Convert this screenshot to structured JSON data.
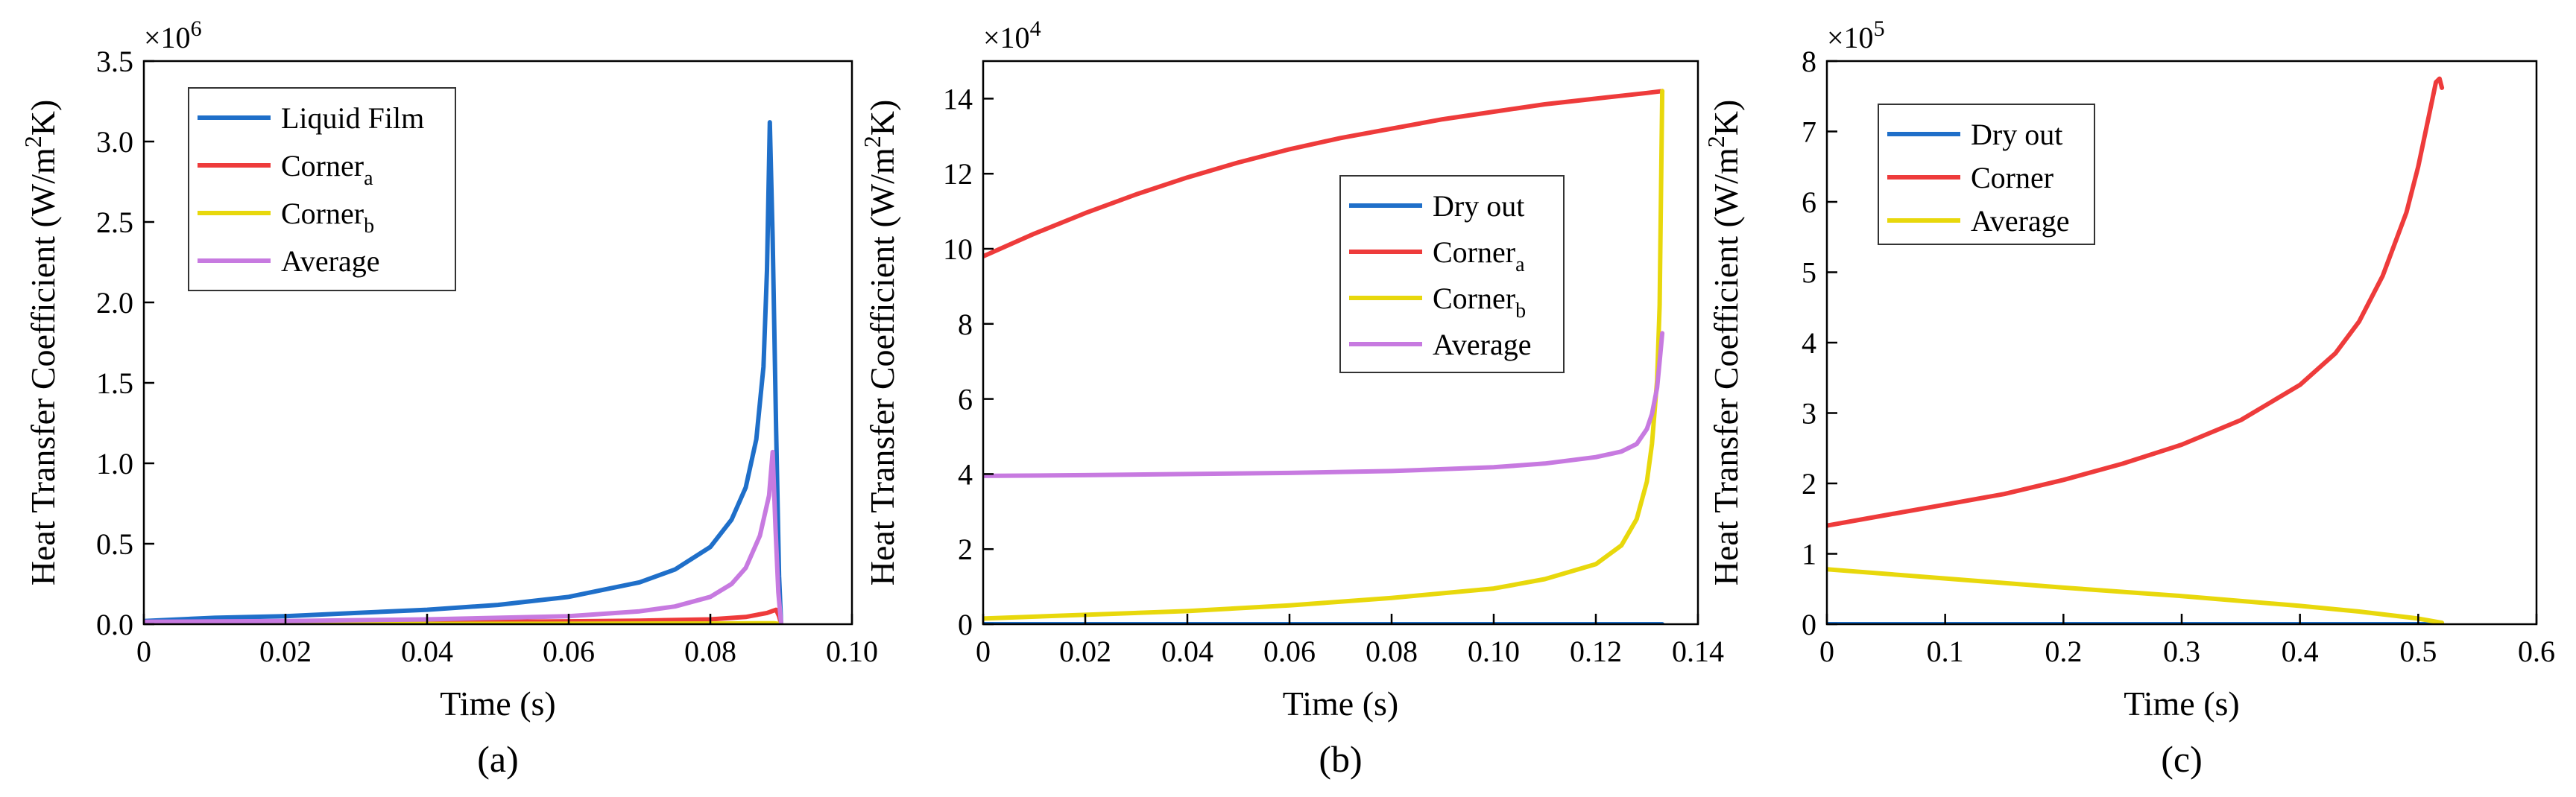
{
  "chart_data": [
    {
      "type": "line",
      "panel_label": "(a)",
      "xlabel": "Time (s)",
      "ylabel": {
        "main": "Heat Transfer Coefficient (W/m",
        "sup": "2",
        "end": "K)"
      },
      "y_multiplier": {
        "base": "×10",
        "exp": "6"
      },
      "xlim": [
        0,
        0.1
      ],
      "ylim": [
        0,
        3.5
      ],
      "xticks": [
        0,
        0.02,
        0.04,
        0.06,
        0.08,
        0.1
      ],
      "xtick_labels": [
        "0",
        "0.02",
        "0.04",
        "0.06",
        "0.08",
        "0.10"
      ],
      "yticks": [
        0,
        0.5,
        1.0,
        1.5,
        2.0,
        2.5,
        3.0,
        3.5
      ],
      "ytick_labels": [
        "0.0",
        "0.5",
        "1.0",
        "1.5",
        "2.0",
        "2.5",
        "3.0",
        "3.5"
      ],
      "legend_position": "top-left",
      "series": [
        {
          "name": "Liquid Film",
          "name_sub": "",
          "color": "#1f6fc9",
          "points": [
            [
              0,
              0.02
            ],
            [
              0.01,
              0.04
            ],
            [
              0.02,
              0.05
            ],
            [
              0.03,
              0.07
            ],
            [
              0.04,
              0.09
            ],
            [
              0.05,
              0.12
            ],
            [
              0.06,
              0.17
            ],
            [
              0.07,
              0.26
            ],
            [
              0.075,
              0.34
            ],
            [
              0.08,
              0.48
            ],
            [
              0.083,
              0.65
            ],
            [
              0.085,
              0.85
            ],
            [
              0.0865,
              1.15
            ],
            [
              0.0875,
              1.6
            ],
            [
              0.088,
              2.2
            ],
            [
              0.0884,
              3.12
            ],
            [
              0.0888,
              2.4
            ],
            [
              0.0893,
              1.2
            ],
            [
              0.0897,
              0.3
            ],
            [
              0.09,
              0.0
            ]
          ]
        },
        {
          "name": "Corner",
          "name_sub": "a",
          "color": "#ee3b3b",
          "points": [
            [
              0,
              0.005
            ],
            [
              0.02,
              0.008
            ],
            [
              0.04,
              0.012
            ],
            [
              0.06,
              0.018
            ],
            [
              0.07,
              0.022
            ],
            [
              0.08,
              0.03
            ],
            [
              0.085,
              0.045
            ],
            [
              0.088,
              0.07
            ],
            [
              0.0893,
              0.09
            ],
            [
              0.0897,
              0.05
            ],
            [
              0.09,
              0.0
            ]
          ]
        },
        {
          "name": "Corner",
          "name_sub": "b",
          "color": "#e8d80c",
          "points": [
            [
              0,
              0.001
            ],
            [
              0.04,
              0.002
            ],
            [
              0.08,
              0.004
            ],
            [
              0.089,
              0.006
            ],
            [
              0.09,
              0.0
            ]
          ]
        },
        {
          "name": "Average",
          "name_sub": "",
          "color": "#c77ae0",
          "points": [
            [
              0,
              0.015
            ],
            [
              0.02,
              0.02
            ],
            [
              0.04,
              0.03
            ],
            [
              0.06,
              0.05
            ],
            [
              0.07,
              0.08
            ],
            [
              0.075,
              0.11
            ],
            [
              0.08,
              0.17
            ],
            [
              0.083,
              0.25
            ],
            [
              0.085,
              0.35
            ],
            [
              0.087,
              0.55
            ],
            [
              0.0883,
              0.8
            ],
            [
              0.0888,
              1.07
            ],
            [
              0.0892,
              0.6
            ],
            [
              0.0896,
              0.2
            ],
            [
              0.09,
              0.0
            ]
          ]
        }
      ]
    },
    {
      "type": "line",
      "panel_label": "(b)",
      "xlabel": "Time (s)",
      "ylabel": {
        "main": "Heat Transfer Coefficient (W/m",
        "sup": "2",
        "end": "K)"
      },
      "y_multiplier": {
        "base": "×10",
        "exp": "4"
      },
      "xlim": [
        0,
        0.14
      ],
      "ylim": [
        0,
        15
      ],
      "xticks": [
        0,
        0.02,
        0.04,
        0.06,
        0.08,
        0.1,
        0.12,
        0.14
      ],
      "xtick_labels": [
        "0",
        "0.02",
        "0.04",
        "0.06",
        "0.08",
        "0.10",
        "0.12",
        "0.14"
      ],
      "yticks": [
        0,
        2,
        4,
        6,
        8,
        10,
        12,
        14
      ],
      "ytick_labels": [
        "0",
        "2",
        "4",
        "6",
        "8",
        "10",
        "12",
        "14"
      ],
      "legend_position": "right",
      "series": [
        {
          "name": "Dry out",
          "name_sub": "",
          "color": "#1f6fc9",
          "points": [
            [
              0,
              0.0
            ],
            [
              0.133,
              0.0
            ]
          ]
        },
        {
          "name": "Corner",
          "name_sub": "a",
          "color": "#ee3b3b",
          "points": [
            [
              0,
              9.8
            ],
            [
              0.01,
              10.4
            ],
            [
              0.02,
              10.95
            ],
            [
              0.03,
              11.45
            ],
            [
              0.04,
              11.9
            ],
            [
              0.05,
              12.3
            ],
            [
              0.06,
              12.65
            ],
            [
              0.07,
              12.95
            ],
            [
              0.08,
              13.2
            ],
            [
              0.09,
              13.45
            ],
            [
              0.1,
              13.65
            ],
            [
              0.11,
              13.85
            ],
            [
              0.12,
              14.0
            ],
            [
              0.13,
              14.15
            ],
            [
              0.133,
              14.2
            ]
          ]
        },
        {
          "name": "Corner",
          "name_sub": "b",
          "color": "#e8d80c",
          "points": [
            [
              0,
              0.15
            ],
            [
              0.02,
              0.25
            ],
            [
              0.04,
              0.35
            ],
            [
              0.06,
              0.5
            ],
            [
              0.08,
              0.7
            ],
            [
              0.1,
              0.95
            ],
            [
              0.11,
              1.2
            ],
            [
              0.12,
              1.6
            ],
            [
              0.125,
              2.1
            ],
            [
              0.128,
              2.8
            ],
            [
              0.13,
              3.8
            ],
            [
              0.131,
              4.8
            ],
            [
              0.132,
              6.5
            ],
            [
              0.1325,
              8.5
            ],
            [
              0.133,
              14.2
            ]
          ]
        },
        {
          "name": "Average",
          "name_sub": "",
          "color": "#c77ae0",
          "points": [
            [
              0,
              3.95
            ],
            [
              0.02,
              3.97
            ],
            [
              0.04,
              4.0
            ],
            [
              0.06,
              4.03
            ],
            [
              0.08,
              4.08
            ],
            [
              0.1,
              4.18
            ],
            [
              0.11,
              4.28
            ],
            [
              0.12,
              4.45
            ],
            [
              0.125,
              4.6
            ],
            [
              0.128,
              4.8
            ],
            [
              0.13,
              5.2
            ],
            [
              0.131,
              5.6
            ],
            [
              0.132,
              6.3
            ],
            [
              0.1325,
              7.0
            ],
            [
              0.133,
              7.75
            ]
          ]
        }
      ]
    },
    {
      "type": "line",
      "panel_label": "(c)",
      "xlabel": "Time (s)",
      "ylabel": {
        "main": "Heat Transfer Coefficient (W/m",
        "sup": "2",
        "end": "K)"
      },
      "y_multiplier": {
        "base": "×10",
        "exp": "5"
      },
      "xlim": [
        0,
        0.6
      ],
      "ylim": [
        0,
        8
      ],
      "xticks": [
        0,
        0.1,
        0.2,
        0.3,
        0.4,
        0.5,
        0.6
      ],
      "xtick_labels": [
        "0",
        "0.1",
        "0.2",
        "0.3",
        "0.4",
        "0.5",
        "0.6"
      ],
      "yticks": [
        0,
        1,
        2,
        3,
        4,
        5,
        6,
        7,
        8
      ],
      "ytick_labels": [
        "0",
        "1",
        "2",
        "3",
        "4",
        "5",
        "6",
        "7",
        "8"
      ],
      "legend_position": "top-left",
      "series": [
        {
          "name": "Dry out",
          "name_sub": "",
          "color": "#1f6fc9",
          "points": [
            [
              0,
              0.0
            ],
            [
              0.52,
              0.0
            ]
          ]
        },
        {
          "name": "Corner",
          "name_sub": "",
          "color": "#ee3b3b",
          "points": [
            [
              0,
              1.4
            ],
            [
              0.05,
              1.55
            ],
            [
              0.1,
              1.7
            ],
            [
              0.15,
              1.85
            ],
            [
              0.2,
              2.05
            ],
            [
              0.25,
              2.28
            ],
            [
              0.3,
              2.55
            ],
            [
              0.35,
              2.9
            ],
            [
              0.4,
              3.4
            ],
            [
              0.43,
              3.85
            ],
            [
              0.45,
              4.3
            ],
            [
              0.47,
              4.95
            ],
            [
              0.49,
              5.85
            ],
            [
              0.5,
              6.5
            ],
            [
              0.51,
              7.3
            ],
            [
              0.515,
              7.7
            ],
            [
              0.518,
              7.75
            ],
            [
              0.52,
              7.62
            ]
          ]
        },
        {
          "name": "Average",
          "name_sub": "",
          "color": "#e8d80c",
          "points": [
            [
              0,
              0.78
            ],
            [
              0.1,
              0.65
            ],
            [
              0.2,
              0.52
            ],
            [
              0.3,
              0.4
            ],
            [
              0.4,
              0.26
            ],
            [
              0.45,
              0.18
            ],
            [
              0.5,
              0.08
            ],
            [
              0.52,
              0.02
            ]
          ]
        }
      ]
    }
  ]
}
